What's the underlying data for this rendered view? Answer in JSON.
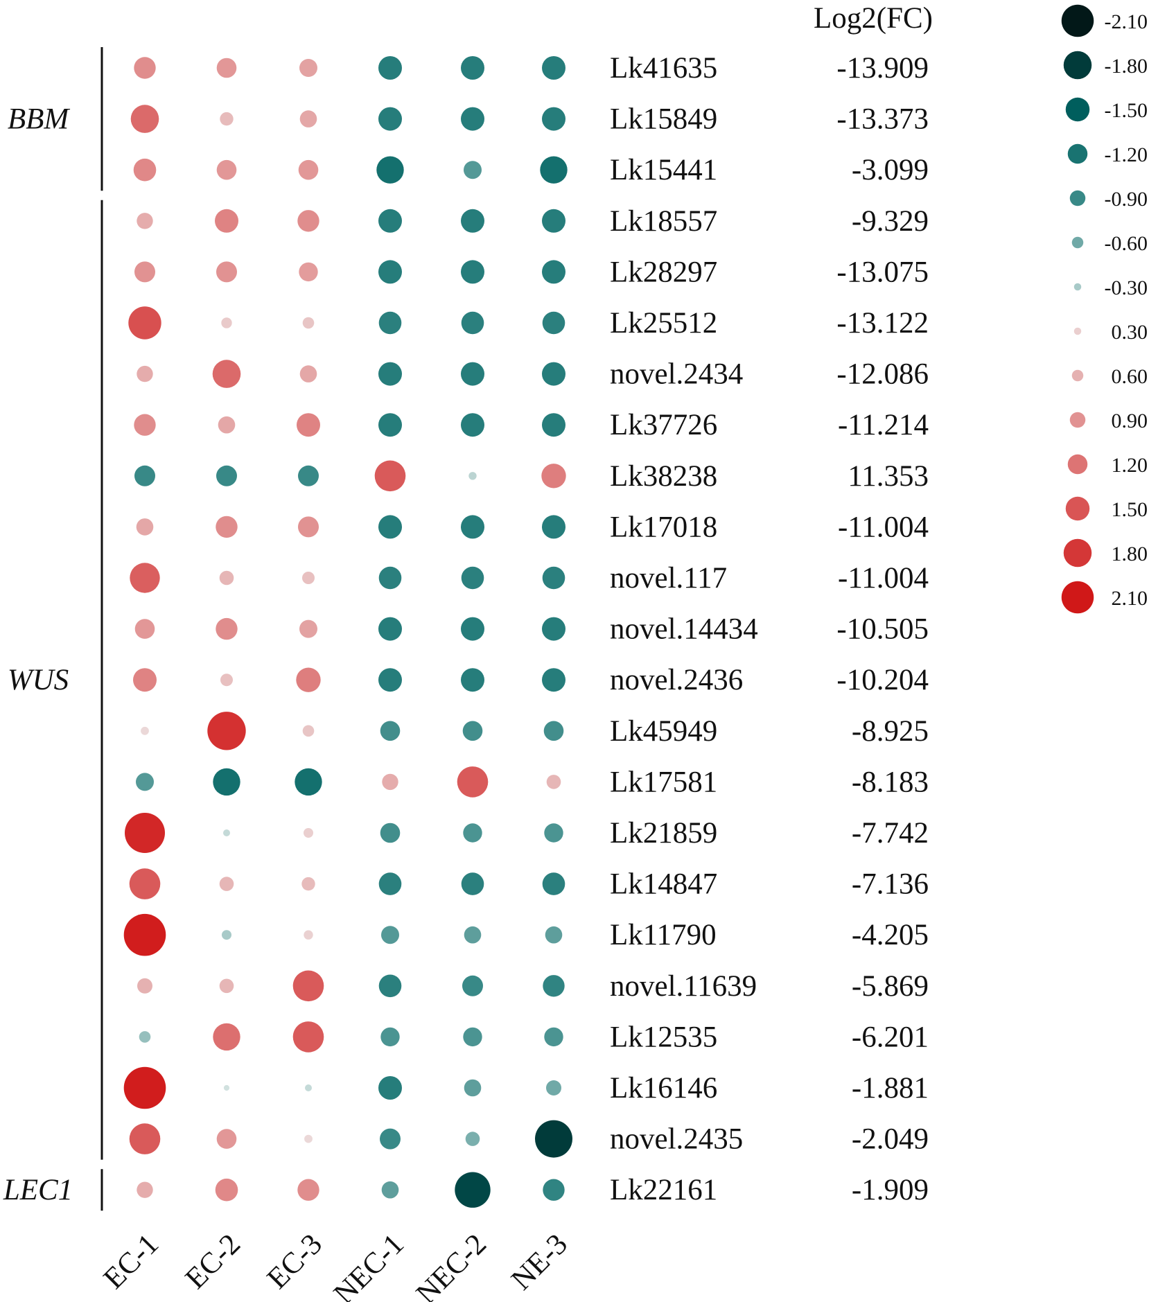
{
  "chart_data": {
    "type": "bubble-heatmap",
    "fc_header": "Log2(FC)",
    "columns": [
      "EC-1",
      "EC-2",
      "EC-3",
      "NEC-1",
      "NEC-2",
      "NE-3"
    ],
    "groups": [
      {
        "name": "BBM",
        "start": 0,
        "end": 2
      },
      {
        "name": "WUS",
        "start": 3,
        "end": 21
      },
      {
        "name": "LEC1",
        "start": 22,
        "end": 22
      }
    ],
    "rows": [
      {
        "gene": "Lk41635",
        "fc": "-13.909",
        "values": [
          0.95,
          0.85,
          0.75,
          -1.05,
          -1.05,
          -1.05
        ]
      },
      {
        "gene": "Lk15849",
        "fc": "-13.373",
        "values": [
          1.3,
          0.5,
          0.7,
          -1.05,
          -1.05,
          -1.05
        ]
      },
      {
        "gene": "Lk15441",
        "fc": "-3.099",
        "values": [
          1.0,
          0.85,
          0.85,
          -1.25,
          -0.75,
          -1.25
        ]
      },
      {
        "gene": "Lk18557",
        "fc": "-9.329",
        "values": [
          0.65,
          1.05,
          0.95,
          -1.05,
          -1.05,
          -1.05
        ]
      },
      {
        "gene": "Lk28297",
        "fc": "-13.075",
        "values": [
          0.9,
          0.9,
          0.8,
          -1.05,
          -1.05,
          -1.05
        ]
      },
      {
        "gene": "Lk25512",
        "fc": "-13.122",
        "values": [
          1.55,
          0.35,
          0.4,
          -1.0,
          -1.0,
          -1.0
        ]
      },
      {
        "gene": "novel.2434",
        "fc": "-12.086",
        "values": [
          0.65,
          1.3,
          0.7,
          -1.05,
          -1.05,
          -1.05
        ]
      },
      {
        "gene": "Lk37726",
        "fc": "-11.214",
        "values": [
          0.95,
          0.7,
          1.05,
          -1.05,
          -1.05,
          -1.05
        ]
      },
      {
        "gene": "Lk38238",
        "fc": "11.353",
        "values": [
          -0.9,
          -0.9,
          -0.9,
          1.45,
          -0.2,
          1.1
        ]
      },
      {
        "gene": "Lk17018",
        "fc": "-11.004",
        "values": [
          0.7,
          0.95,
          0.9,
          -1.05,
          -1.05,
          -1.05
        ]
      },
      {
        "gene": "novel.117",
        "fc": "-11.004",
        "values": [
          1.4,
          0.55,
          0.45,
          -1.0,
          -1.0,
          -1.0
        ]
      },
      {
        "gene": "novel.14434",
        "fc": "-10.505",
        "values": [
          0.85,
          0.95,
          0.75,
          -1.05,
          -1.05,
          -1.05
        ]
      },
      {
        "gene": "novel.2436",
        "fc": "-10.204",
        "values": [
          1.05,
          0.45,
          1.1,
          -1.05,
          -1.05,
          -1.05
        ]
      },
      {
        "gene": "Lk45949",
        "fc": "-8.925",
        "values": [
          0.22,
          1.85,
          0.4,
          -0.85,
          -0.85,
          -0.85
        ]
      },
      {
        "gene": "Lk17581",
        "fc": "-8.183",
        "values": [
          -0.75,
          -1.25,
          -1.25,
          0.65,
          1.45,
          0.55
        ]
      },
      {
        "gene": "Lk21859",
        "fc": "-7.742",
        "values": [
          1.95,
          -0.15,
          0.3,
          -0.85,
          -0.8,
          -0.8
        ]
      },
      {
        "gene": "Lk14847",
        "fc": "-7.136",
        "values": [
          1.45,
          0.55,
          0.5,
          -1.0,
          -1.0,
          -1.0
        ]
      },
      {
        "gene": "Lk11790",
        "fc": "-4.205",
        "values": [
          2.05,
          -0.3,
          0.28,
          -0.75,
          -0.7,
          -0.7
        ]
      },
      {
        "gene": "novel.11639",
        "fc": "-5.869",
        "values": [
          0.6,
          0.55,
          1.45,
          -1.0,
          -0.9,
          -0.95
        ]
      },
      {
        "gene": "Lk12535",
        "fc": "-6.201",
        "values": [
          -0.4,
          1.25,
          1.45,
          -0.8,
          -0.8,
          -0.8
        ]
      },
      {
        "gene": "Lk16146",
        "fc": "-1.881",
        "values": [
          2.05,
          -0.08,
          -0.15,
          -1.05,
          -0.7,
          -0.6
        ]
      },
      {
        "gene": "novel.2435",
        "fc": "-2.049",
        "values": [
          1.45,
          0.85,
          0.22,
          -0.9,
          -0.55,
          -1.8
        ]
      },
      {
        "gene": "Lk22161",
        "fc": "-1.909",
        "values": [
          0.65,
          1.0,
          0.95,
          -0.7,
          -1.7,
          -0.95
        ]
      }
    ],
    "legend": {
      "labels": [
        "-2.10",
        "-1.80",
        "-1.50",
        "-1.20",
        "-0.90",
        "-0.60",
        "-0.30",
        "0.30",
        "0.60",
        "0.90",
        "1.20",
        "1.50",
        "1.80",
        "2.10"
      ],
      "values": [
        -2.1,
        -1.8,
        -1.5,
        -1.2,
        -0.9,
        -0.6,
        -0.3,
        0.3,
        0.6,
        0.9,
        1.2,
        1.5,
        1.8,
        2.1
      ]
    }
  }
}
